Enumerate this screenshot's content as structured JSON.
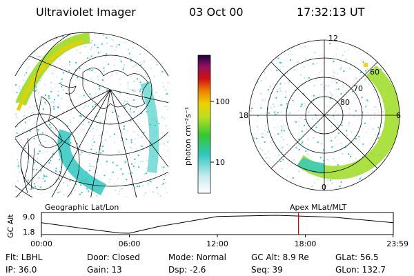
{
  "header": {
    "instrument": "Ultraviolet Imager",
    "date": "03 Oct 00",
    "time": "17:32:13 UT"
  },
  "colorbar": {
    "unit_label": "photon cm⁻²s⁻¹",
    "ticks": [
      "100",
      "10"
    ]
  },
  "polar_plot": {
    "mlt_labels": {
      "top": "12",
      "left": "18",
      "right": "6",
      "bottom": "0"
    },
    "lat_labels": [
      "60",
      "70",
      "80"
    ]
  },
  "map_caption": "Geographic Lat/Lon",
  "polar_caption": "Apex MLat/MLT",
  "timeline": {
    "ylabel": "GC Alt",
    "yticks": [
      "9.0",
      "1.8"
    ],
    "xticks": [
      "00:00",
      "06:00",
      "12:00",
      "18:00",
      "23:59"
    ],
    "marker_time": "17:32",
    "altitude_profile": {
      "x_hours": [
        0,
        3,
        5.3,
        6,
        8,
        12,
        16,
        20,
        24
      ],
      "y_re": [
        6.0,
        3.6,
        1.9,
        1.8,
        4.5,
        8.5,
        9.0,
        8.2,
        6.0
      ]
    }
  },
  "status": {
    "row1": [
      {
        "label": "Flt:",
        "value": "LBHL"
      },
      {
        "label": "Door:",
        "value": "Closed"
      },
      {
        "label": "Mode:",
        "value": "Normal"
      },
      {
        "label": "GC Alt:",
        "value": "8.9 Re"
      },
      {
        "label": "GLat:",
        "value": "56.5"
      }
    ],
    "row2": [
      {
        "label": "IP:",
        "value": "36.0"
      },
      {
        "label": "Gain:",
        "value": "13"
      },
      {
        "label": "Dsp:",
        "value": "-2.6"
      },
      {
        "label": "Seq:",
        "value": "39"
      },
      {
        "label": "GLon:",
        "value": "132.7"
      }
    ]
  },
  "colors": {
    "aurora_low": "#2ec8c0",
    "aurora_mid": "#9cdc20",
    "aurora_high": "#e8d000",
    "background_speckle": "#d8e8ee",
    "marker": "#e00000",
    "sun_dot": "#ffd400"
  }
}
